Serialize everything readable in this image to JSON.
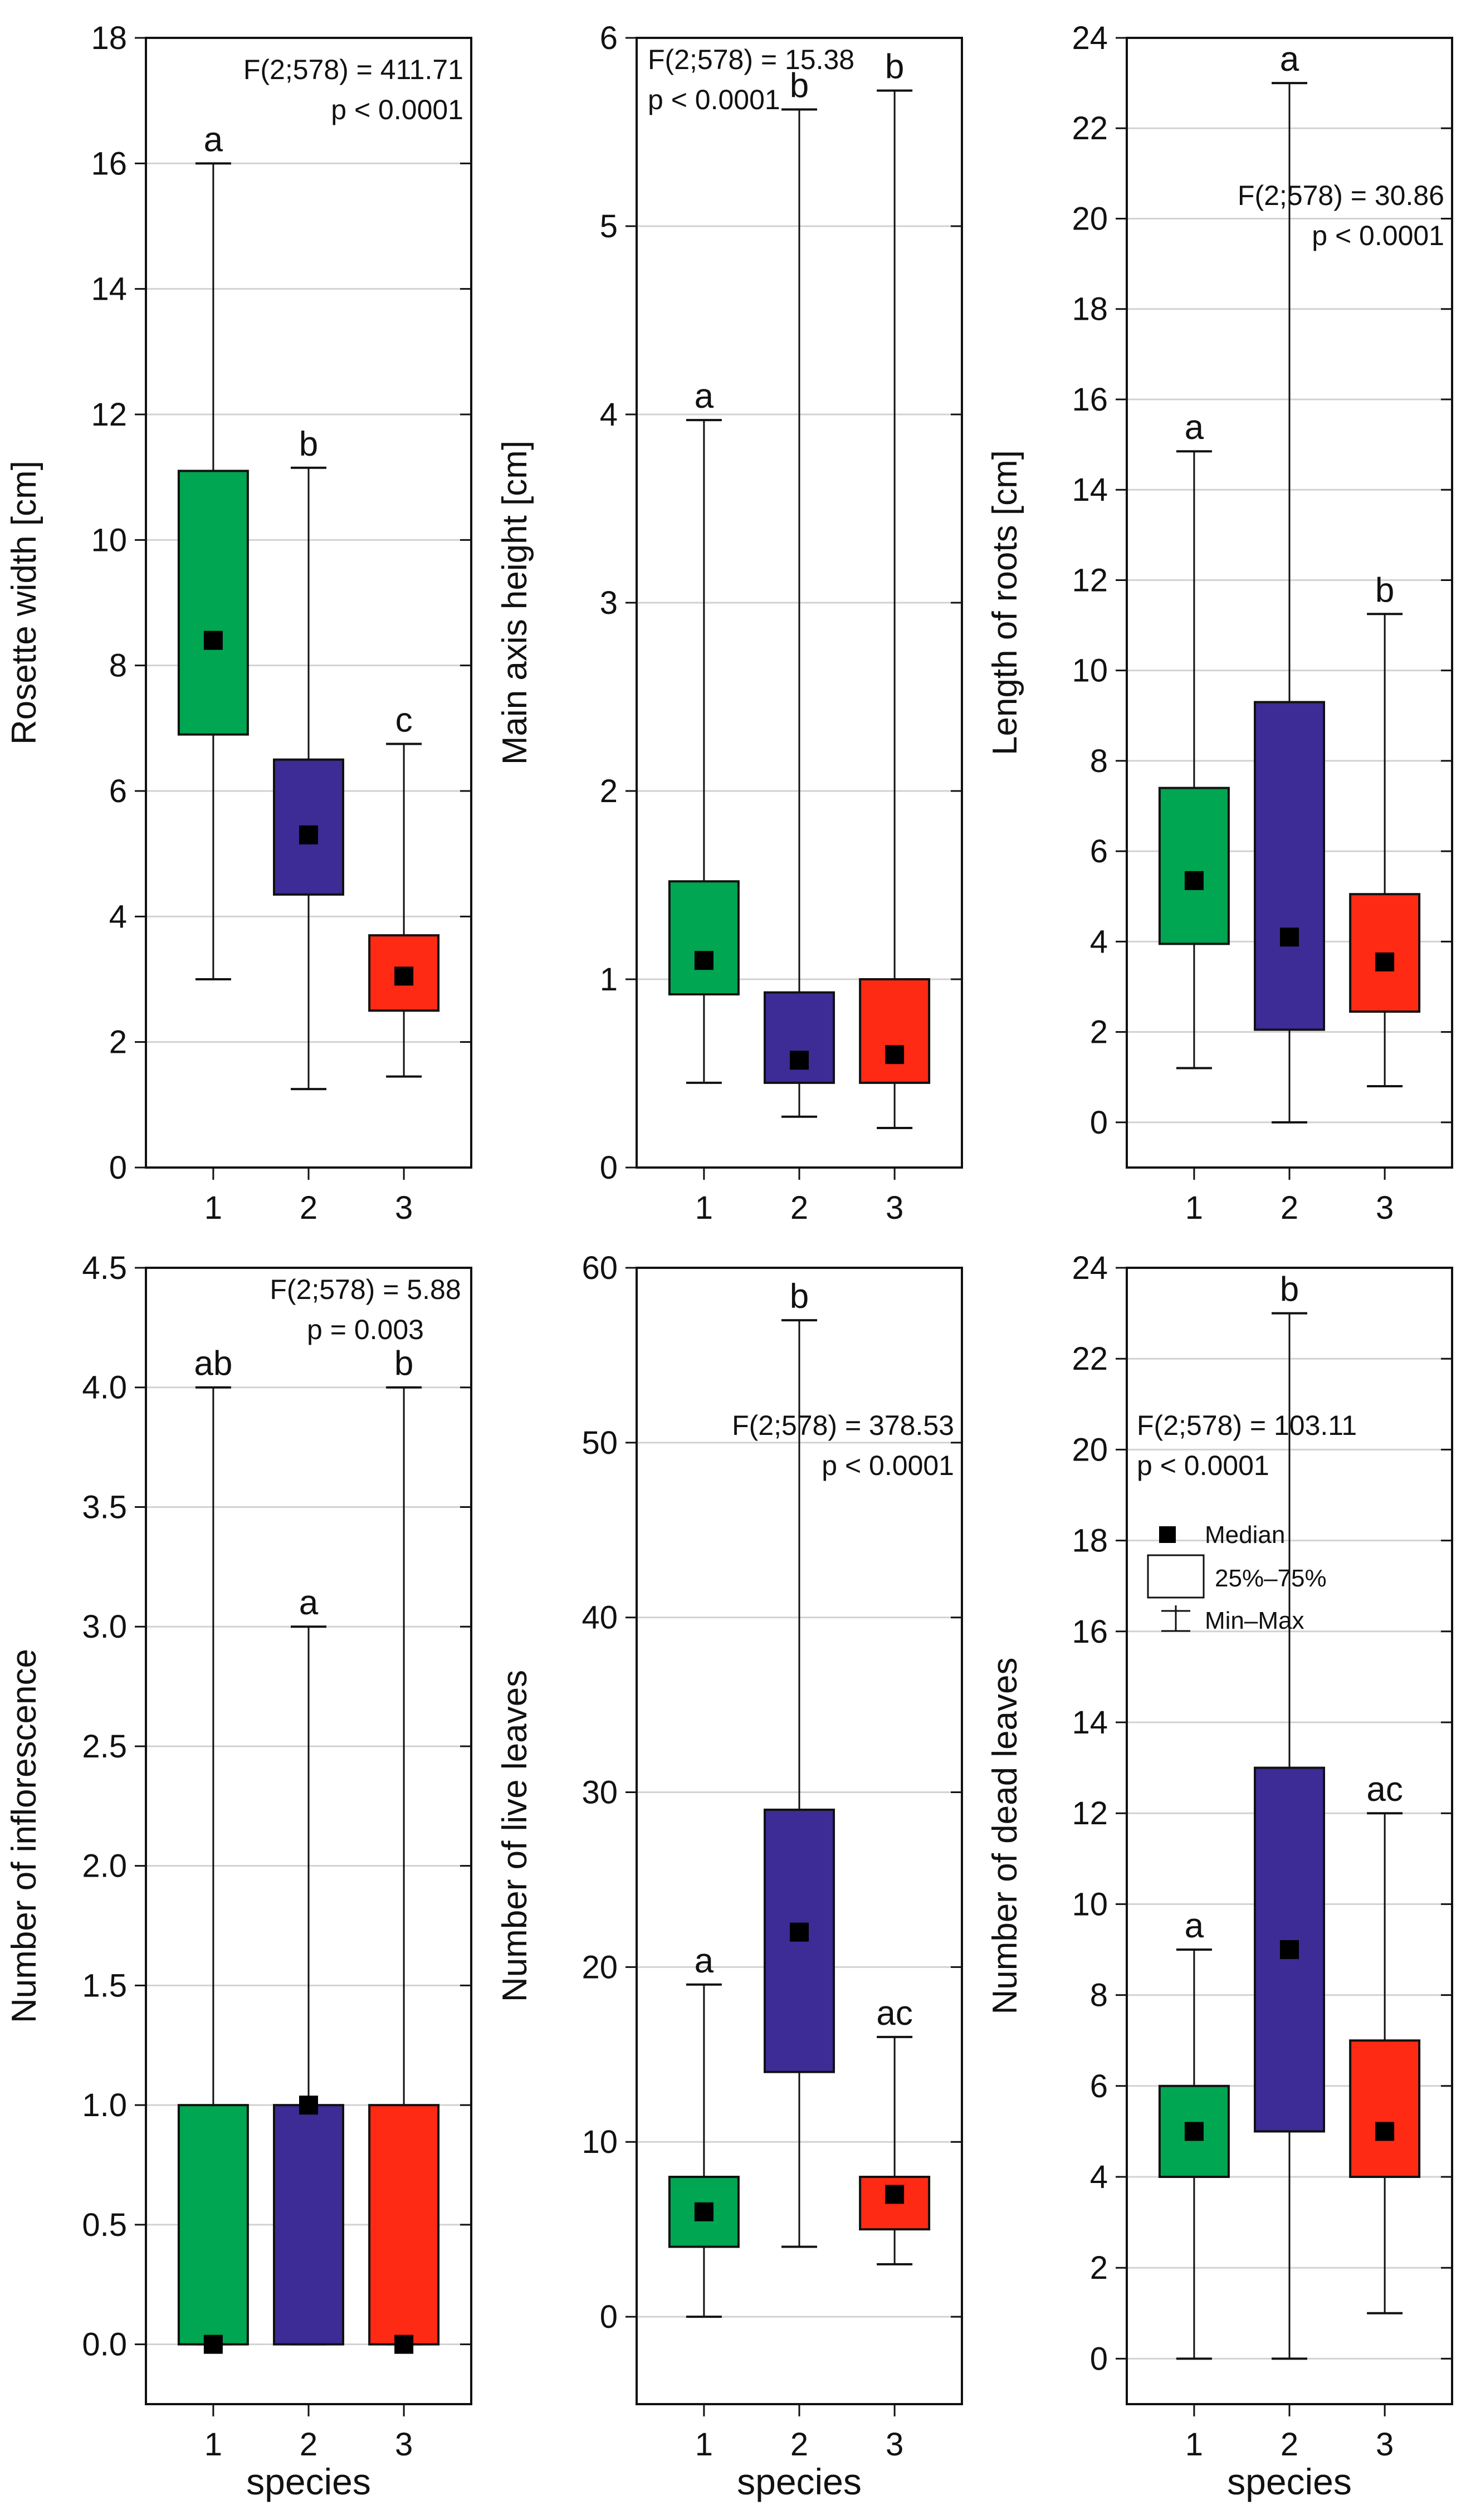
{
  "chart_data": [
    {
      "type": "box",
      "ylabel": "Rosette width [cm]",
      "xlabel": "",
      "categories": [
        "1",
        "2",
        "3"
      ],
      "colors": [
        "#00a651",
        "#3d2b96",
        "#ff2a14"
      ],
      "ylim": [
        0,
        18
      ],
      "yticks": [
        "0",
        "2",
        "4",
        "6",
        "8",
        "10",
        "12",
        "14",
        "16",
        "18"
      ],
      "stat_lines": [
        "F(2;578) = 411.71",
        "p < 0.0001"
      ],
      "stat_anchor": "top-right",
      "boxes": [
        {
          "min": 3.0,
          "q1": 6.9,
          "median": 8.4,
          "q3": 11.1,
          "max": 16.0,
          "letter": "a"
        },
        {
          "min": 1.25,
          "q1": 4.35,
          "median": 5.3,
          "q3": 6.5,
          "max": 11.15,
          "letter": "b"
        },
        {
          "min": 1.45,
          "q1": 2.5,
          "median": 3.05,
          "q3": 3.7,
          "max": 6.75,
          "letter": "c"
        }
      ]
    },
    {
      "type": "box",
      "ylabel": "Main axis height [cm]",
      "xlabel": "",
      "categories": [
        "1",
        "2",
        "3"
      ],
      "colors": [
        "#00a651",
        "#3d2b96",
        "#ff2a14"
      ],
      "ylim": [
        0,
        6
      ],
      "yticks": [
        "0",
        "1",
        "2",
        "3",
        "4",
        "5",
        "6"
      ],
      "stat_lines": [
        "F(2;578) = 15.38",
        "p < 0.0001"
      ],
      "stat_anchor": "top-left",
      "boxes": [
        {
          "min": 0.45,
          "q1": 0.92,
          "median": 1.1,
          "q3": 1.52,
          "max": 3.97,
          "letter": "a"
        },
        {
          "min": 0.27,
          "q1": 0.45,
          "median": 0.57,
          "q3": 0.93,
          "max": 5.62,
          "letter": "b"
        },
        {
          "min": 0.21,
          "q1": 0.45,
          "median": 0.6,
          "q3": 1.0,
          "max": 5.72,
          "letter": "b"
        }
      ]
    },
    {
      "type": "box",
      "ylabel": "Length of roots [cm]",
      "xlabel": "",
      "categories": [
        "1",
        "2",
        "3"
      ],
      "colors": [
        "#00a651",
        "#3d2b96",
        "#ff2a14"
      ],
      "ylim": [
        -1,
        24
      ],
      "yticks": [
        "0",
        "2",
        "4",
        "6",
        "8",
        "10",
        "12",
        "14",
        "16",
        "18",
        "20",
        "22",
        "24"
      ],
      "stat_lines": [
        "F(2;578) = 30.86",
        "p < 0.0001"
      ],
      "stat_anchor": "mid-right",
      "boxes": [
        {
          "min": 1.2,
          "q1": 3.95,
          "median": 5.35,
          "q3": 7.4,
          "max": 14.85,
          "letter": "a"
        },
        {
          "min": 0.0,
          "q1": 2.05,
          "median": 4.1,
          "q3": 9.3,
          "max": 23.0,
          "letter": "a"
        },
        {
          "min": 0.8,
          "q1": 2.45,
          "median": 3.55,
          "q3": 5.05,
          "max": 11.25,
          "letter": "b"
        }
      ]
    },
    {
      "type": "box",
      "ylabel": "Number of inflorescence",
      "xlabel": "species",
      "categories": [
        "1",
        "2",
        "3"
      ],
      "colors": [
        "#00a651",
        "#3d2b96",
        "#ff2a14"
      ],
      "ylim": [
        -0.25,
        4.5
      ],
      "yticks": [
        "0.0",
        "0.5",
        "1.0",
        "1.5",
        "2.0",
        "2.5",
        "3.0",
        "3.5",
        "4.0",
        "4.5"
      ],
      "stat_lines": [
        "F(2;578) = 5.88",
        "p = 0.003"
      ],
      "stat_anchor": "top-center",
      "boxes": [
        {
          "min": 0.0,
          "q1": 0.0,
          "median": 0.0,
          "q3": 1.0,
          "max": 4.0,
          "letter": "ab"
        },
        {
          "min": 0.0,
          "q1": 0.0,
          "median": 1.0,
          "q3": 1.0,
          "max": 3.0,
          "letter": "a"
        },
        {
          "min": 0.0,
          "q1": 0.0,
          "median": 0.0,
          "q3": 1.0,
          "max": 4.0,
          "letter": "b"
        }
      ]
    },
    {
      "type": "box",
      "ylabel": "Number of live leaves",
      "xlabel": "species",
      "categories": [
        "1",
        "2",
        "3"
      ],
      "colors": [
        "#00a651",
        "#3d2b96",
        "#ff2a14"
      ],
      "ylim": [
        -5,
        60
      ],
      "yticks": [
        "0",
        "10",
        "20",
        "30",
        "40",
        "50",
        "60"
      ],
      "stat_lines": [
        "F(2;578) = 378.53",
        "p < 0.0001"
      ],
      "stat_anchor": "mid-right",
      "boxes": [
        {
          "min": 0,
          "q1": 4,
          "median": 6,
          "q3": 8,
          "max": 19,
          "letter": "a"
        },
        {
          "min": 4,
          "q1": 14,
          "median": 22,
          "q3": 29,
          "max": 57,
          "letter": "b"
        },
        {
          "min": 3,
          "q1": 5,
          "median": 7,
          "q3": 8,
          "max": 16,
          "letter": "ac"
        }
      ]
    },
    {
      "type": "box",
      "ylabel": "Number of dead leaves",
      "xlabel": "species",
      "categories": [
        "1",
        "2",
        "3"
      ],
      "colors": [
        "#00a651",
        "#3d2b96",
        "#ff2a14"
      ],
      "ylim": [
        -1,
        24
      ],
      "yticks": [
        "0",
        "2",
        "4",
        "6",
        "8",
        "10",
        "12",
        "14",
        "16",
        "18",
        "20",
        "22",
        "24"
      ],
      "stat_lines": [
        "F(2;578) = 103.11",
        "p < 0.0001"
      ],
      "stat_anchor": "mid-left",
      "legend": {
        "items": [
          "Median",
          "25%–75%",
          "Min–Max"
        ]
      },
      "boxes": [
        {
          "min": 0,
          "q1": 4,
          "median": 5,
          "q3": 6,
          "max": 9,
          "letter": "a"
        },
        {
          "min": 0,
          "q1": 5,
          "median": 9,
          "q3": 13,
          "max": 23,
          "letter": "b"
        },
        {
          "min": 1,
          "q1": 4,
          "median": 5,
          "q3": 7,
          "max": 12,
          "letter": "ac"
        }
      ]
    }
  ]
}
